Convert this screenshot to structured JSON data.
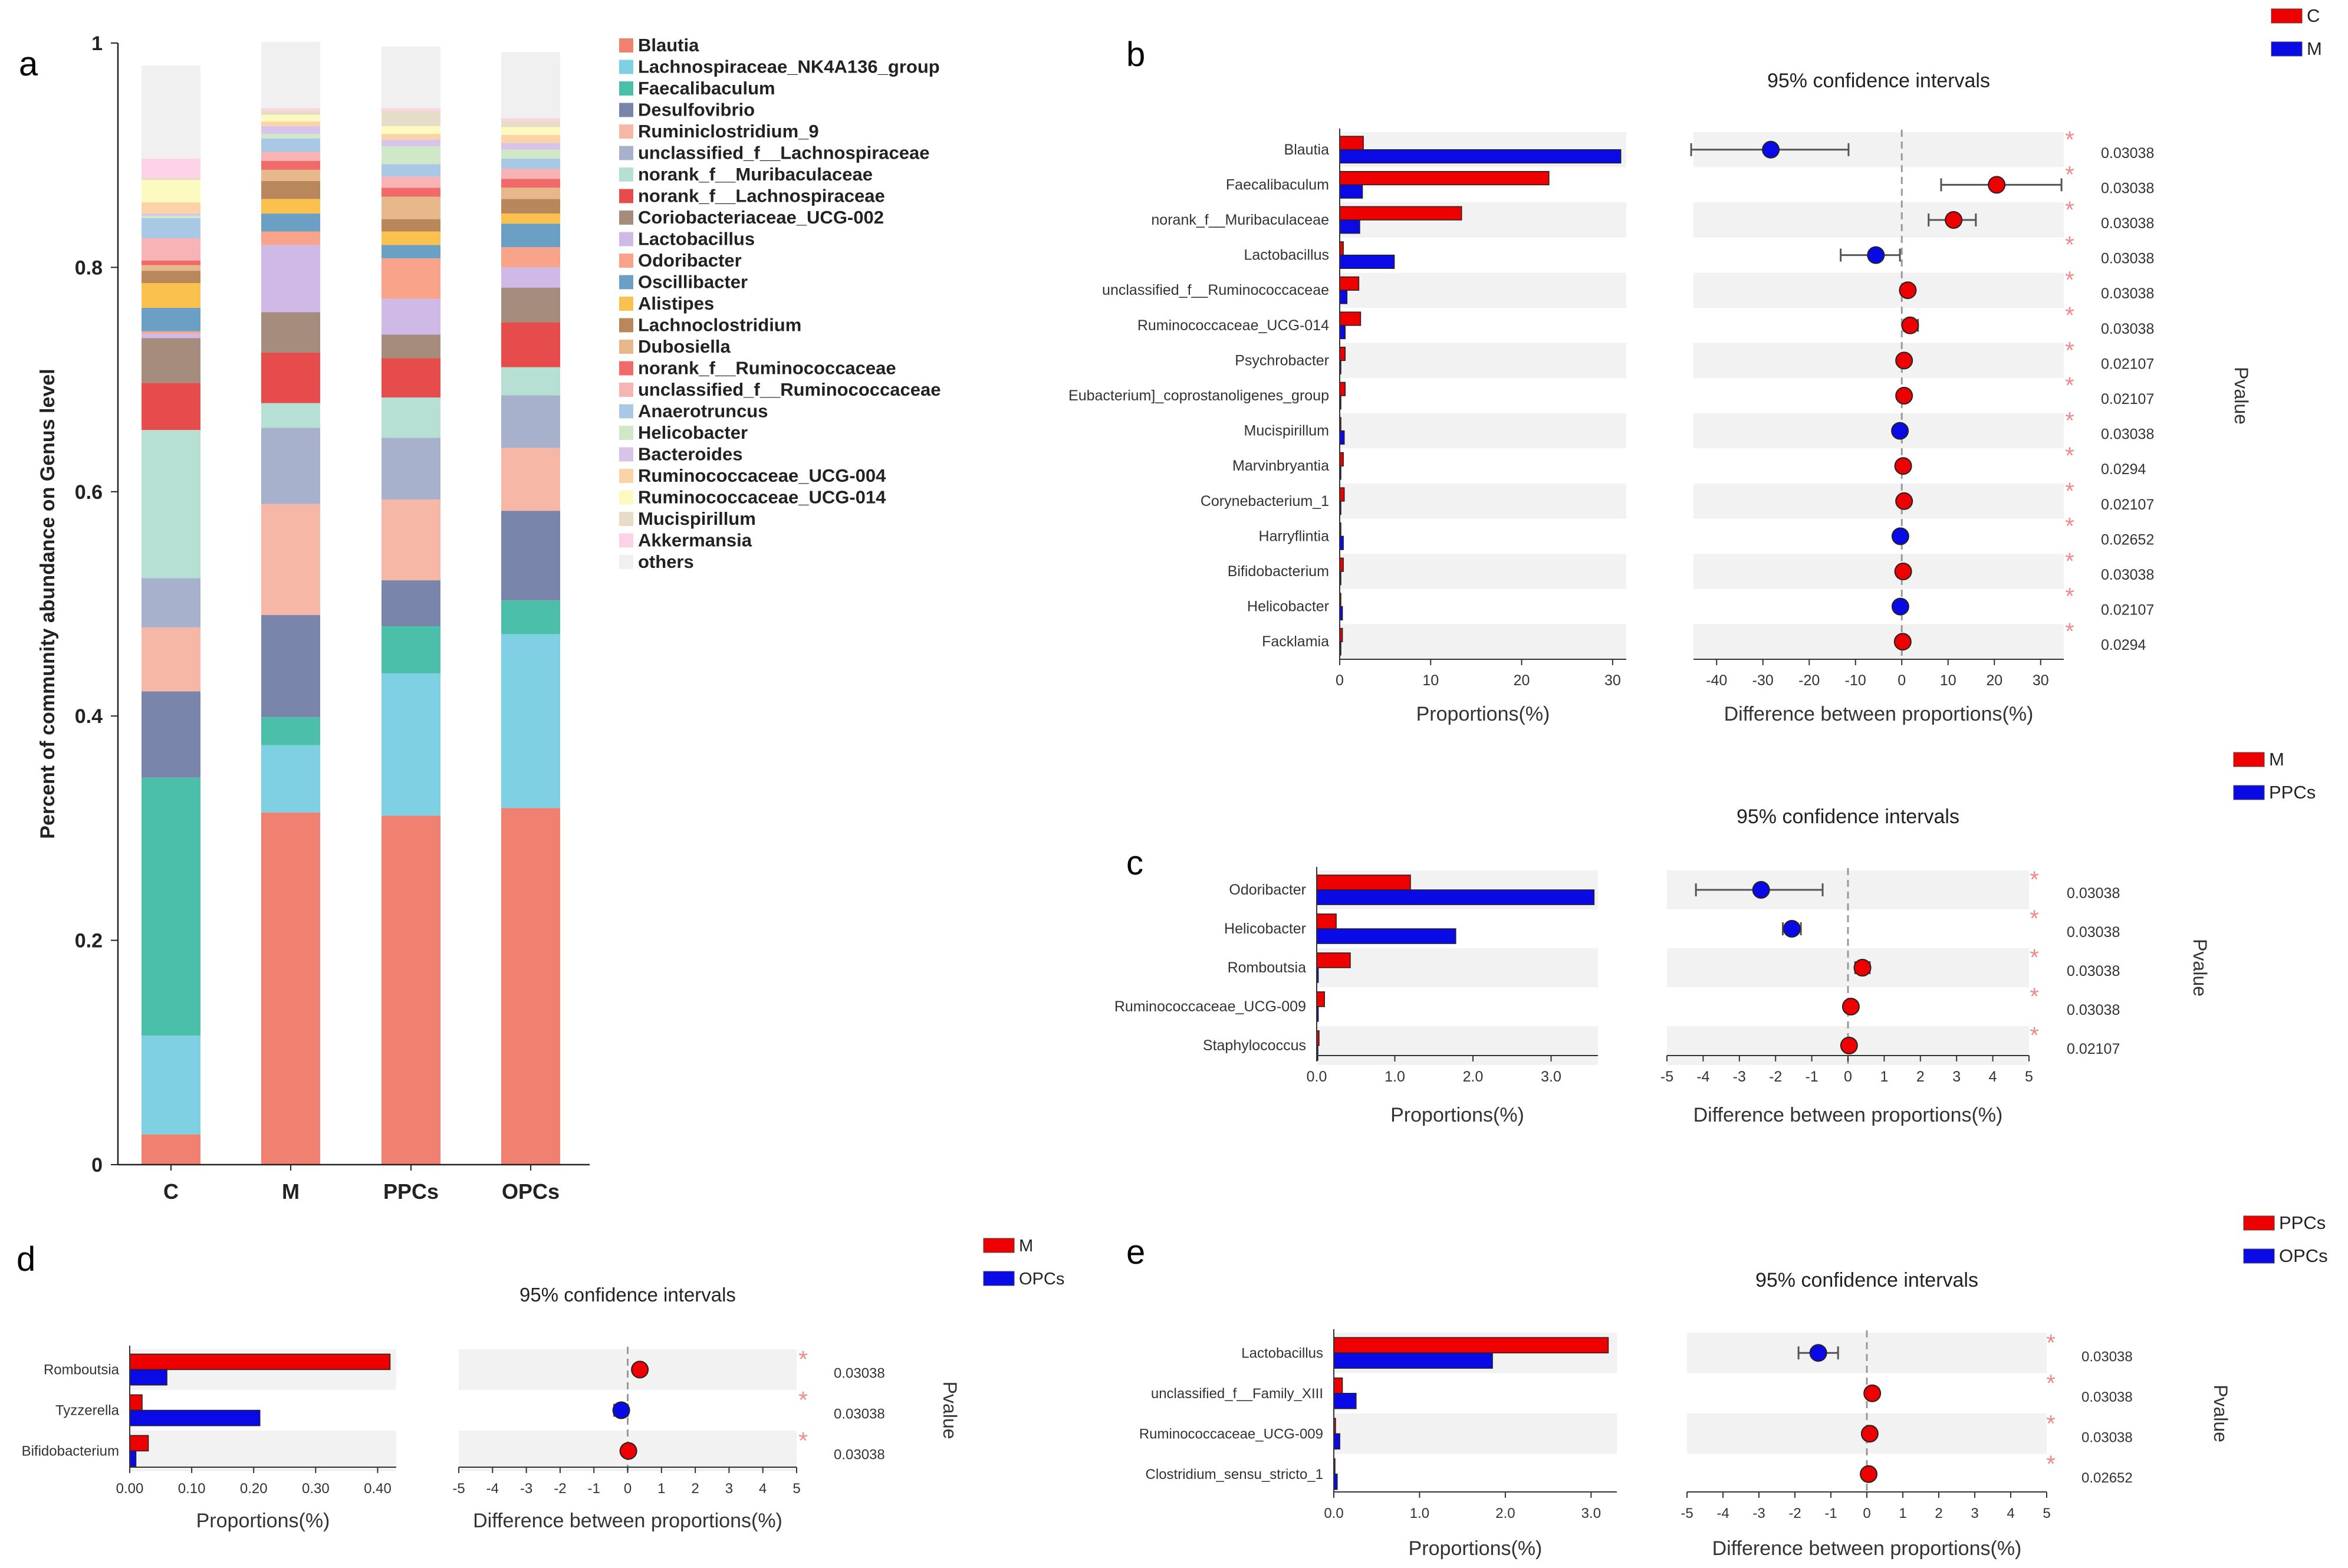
{
  "colors": {
    "red": "#ee0000",
    "blue": "#0a0ae6",
    "stripe": "#f2f2f2",
    "axis": "#333333",
    "star": "#f08a8a",
    "ci_line": "#555555",
    "dash": "#999999"
  },
  "chart_data": [
    {
      "id": "a",
      "type": "bar",
      "stacked": true,
      "panel_label": "a",
      "ylabel": "Percent of community abundance on Genus level",
      "ylim": [
        0,
        1
      ],
      "yticks": [
        "0",
        "0.2",
        "0.4",
        "0.6",
        "0.8",
        "1"
      ],
      "categories": [
        "C",
        "M",
        "PPCs",
        "OPCs"
      ],
      "series": [
        {
          "name": "Blautia",
          "color": "#f08070",
          "values": [
            0.027,
            0.314,
            0.311,
            0.318
          ]
        },
        {
          "name": "Lachnospiraceae_NK4A136_group",
          "color": "#7fd0e3",
          "values": [
            0.088,
            0.06,
            0.127,
            0.155
          ]
        },
        {
          "name": "Faecalibaculum",
          "color": "#4cbfab",
          "values": [
            0.23,
            0.025,
            0.042,
            0.03
          ]
        },
        {
          "name": "Desulfovibrio",
          "color": "#7a85ab",
          "values": [
            0.077,
            0.091,
            0.041,
            0.08
          ]
        },
        {
          "name": "Ruminiclostridium_9",
          "color": "#f6b7a6",
          "values": [
            0.057,
            0.099,
            0.072,
            0.056
          ]
        },
        {
          "name": "unclassified_f__Lachnospiraceae",
          "color": "#a7b1cc",
          "values": [
            0.044,
            0.068,
            0.055,
            0.047
          ]
        },
        {
          "name": "norank_f__Muribaculaceae",
          "color": "#b5e0d3",
          "values": [
            0.132,
            0.022,
            0.036,
            0.025
          ]
        },
        {
          "name": "norank_f__Lachnospiraceae",
          "color": "#e74c4c",
          "values": [
            0.042,
            0.045,
            0.035,
            0.04
          ]
        },
        {
          "name": "Coriobacteriaceae_UCG-002",
          "color": "#a58c7c",
          "values": [
            0.04,
            0.036,
            0.021,
            0.031
          ]
        },
        {
          "name": "Lactobacillus",
          "color": "#cfb9e6",
          "values": [
            0.004,
            0.06,
            0.032,
            0.018
          ]
        },
        {
          "name": "Odoribacter",
          "color": "#f8a38a",
          "values": [
            0.002,
            0.012,
            0.036,
            0.018
          ]
        },
        {
          "name": "Oscillibacter",
          "color": "#6c9fc4",
          "values": [
            0.021,
            0.016,
            0.012,
            0.021
          ]
        },
        {
          "name": "Alistipes",
          "color": "#fbc14f",
          "values": [
            0.022,
            0.013,
            0.012,
            0.009
          ]
        },
        {
          "name": "Lachnoclostridium",
          "color": "#b9875c",
          "values": [
            0.011,
            0.016,
            0.011,
            0.013
          ]
        },
        {
          "name": "Dubosiella",
          "color": "#e6b88a",
          "values": [
            0.005,
            0.01,
            0.02,
            0.01
          ]
        },
        {
          "name": "norank_f__Ruminococcaceae",
          "color": "#f06a6a",
          "values": [
            0.004,
            0.008,
            0.008,
            0.008
          ]
        },
        {
          "name": "unclassified_f__Ruminococcaceae",
          "color": "#f8b4b4",
          "values": [
            0.02,
            0.008,
            0.01,
            0.009
          ]
        },
        {
          "name": "Anaerotruncus",
          "color": "#a9c8e6",
          "values": [
            0.018,
            0.012,
            0.011,
            0.009
          ]
        },
        {
          "name": "Helicobacter",
          "color": "#cfe8c8",
          "values": [
            0.002,
            0.004,
            0.016,
            0.008
          ]
        },
        {
          "name": "Bacteroides",
          "color": "#d8c4e8",
          "values": [
            0.002,
            0.007,
            0.006,
            0.006
          ]
        },
        {
          "name": "Ruminococcaceae_UCG-004",
          "color": "#fcd3a6",
          "values": [
            0.01,
            0.004,
            0.005,
            0.007
          ]
        },
        {
          "name": "Ruminococcaceae_UCG-014",
          "color": "#fdfac0",
          "values": [
            0.02,
            0.006,
            0.007,
            0.007
          ]
        },
        {
          "name": "Mucispirillum",
          "color": "#e6dcc8",
          "values": [
            0.002,
            0.004,
            0.014,
            0.006
          ]
        },
        {
          "name": "Akkermansia",
          "color": "#fbd2e6",
          "values": [
            0.017,
            0.002,
            0.002,
            0.002
          ]
        },
        {
          "name": "others",
          "color": "#f0f0f0",
          "values": [
            0.083,
            0.059,
            0.055,
            0.059
          ]
        }
      ]
    },
    {
      "id": "b",
      "type": "bar+errorbar",
      "panel_label": "b",
      "ci_title": "95% confidence intervals",
      "xlabel_left": "Proportions(%)",
      "xlabel_right": "Difference between proportions(%)",
      "pvalue_label": "Pvalue",
      "group_a": "C",
      "group_b": "M",
      "left_xlim": [
        0,
        31.5
      ],
      "left_ticks": [
        "0",
        "10",
        "20",
        "30"
      ],
      "left_tick_values": [
        0,
        10,
        20,
        30
      ],
      "right_xlim": [
        -45,
        35
      ],
      "right_ticks": [
        "-40",
        "-30",
        "-20",
        "-10",
        "0",
        "10",
        "20",
        "30"
      ],
      "right_tick_values": [
        -40,
        -30,
        -20,
        -10,
        0,
        10,
        20,
        30
      ],
      "rows": [
        {
          "taxon": "Blautia",
          "a": 2.6,
          "b": 30.9,
          "diff": -28.3,
          "low": -45.5,
          "high": -11.5,
          "p": "0.03038"
        },
        {
          "taxon": "Faecalibaculum",
          "a": 23.0,
          "b": 2.5,
          "diff": 20.5,
          "low": 8.5,
          "high": 34.5,
          "p": "0.03038"
        },
        {
          "taxon": "norank_f__Muribaculaceae",
          "a": 13.4,
          "b": 2.2,
          "diff": 11.2,
          "low": 5.8,
          "high": 16.0,
          "p": "0.03038"
        },
        {
          "taxon": "Lactobacillus",
          "a": 0.4,
          "b": 6.0,
          "diff": -5.6,
          "low": -13.2,
          "high": -0.4,
          "p": "0.03038"
        },
        {
          "taxon": "unclassified_f__Ruminococcaceae",
          "a": 2.1,
          "b": 0.8,
          "diff": 1.3,
          "low": 0.3,
          "high": 2.4,
          "p": "0.03038"
        },
        {
          "taxon": "Ruminococcaceae_UCG-014",
          "a": 2.3,
          "b": 0.6,
          "diff": 1.8,
          "low": 0.5,
          "high": 3.5,
          "p": "0.03038"
        },
        {
          "taxon": "Psychrobacter",
          "a": 0.6,
          "b": 0.0,
          "diff": 0.5,
          "low": 0.2,
          "high": 0.9,
          "p": "0.02107"
        },
        {
          "taxon": "Eubacterium]_coprostanoligenes_group",
          "a": 0.6,
          "b": 0.1,
          "diff": 0.5,
          "low": 0.1,
          "high": 0.9,
          "p": "0.02107"
        },
        {
          "taxon": "Mucispirillum",
          "a": 0.1,
          "b": 0.5,
          "diff": -0.4,
          "low": -0.8,
          "high": -0.1,
          "p": "0.03038"
        },
        {
          "taxon": "Marvinbryantia",
          "a": 0.4,
          "b": 0.1,
          "diff": 0.3,
          "low": 0.1,
          "high": 0.6,
          "p": "0.0294"
        },
        {
          "taxon": "Corynebacterium_1",
          "a": 0.5,
          "b": 0.0,
          "diff": 0.5,
          "low": 0.1,
          "high": 0.9,
          "p": "0.02107"
        },
        {
          "taxon": "Harryflintia",
          "a": 0.1,
          "b": 0.4,
          "diff": -0.3,
          "low": -0.6,
          "high": -0.1,
          "p": "0.02652"
        },
        {
          "taxon": "Bifidobacterium",
          "a": 0.4,
          "b": 0.1,
          "diff": 0.3,
          "low": 0.1,
          "high": 0.6,
          "p": "0.03038"
        },
        {
          "taxon": "Helicobacter",
          "a": 0.0,
          "b": 0.3,
          "diff": -0.3,
          "low": -0.6,
          "high": -0.1,
          "p": "0.02107"
        },
        {
          "taxon": "Facklamia",
          "a": 0.3,
          "b": 0.0,
          "diff": 0.2,
          "low": 0.05,
          "high": 0.5,
          "p": "0.0294"
        }
      ]
    },
    {
      "id": "c",
      "type": "bar+errorbar",
      "panel_label": "c",
      "ci_title": "95% confidence intervals",
      "xlabel_left": "Proportions(%)",
      "xlabel_right": "Difference between proportions(%)",
      "pvalue_label": "Pvalue",
      "group_a": "M",
      "group_b": "PPCs",
      "left_xlim": [
        0,
        3.6
      ],
      "left_ticks": [
        "0.0",
        "1.0",
        "2.0",
        "3.0"
      ],
      "left_tick_values": [
        0,
        1,
        2,
        3
      ],
      "right_xlim": [
        -5,
        5
      ],
      "right_ticks": [
        "-5",
        "-4",
        "-3",
        "-2",
        "-1",
        "0",
        "1",
        "2",
        "3",
        "4",
        "5"
      ],
      "right_tick_values": [
        -5,
        -4,
        -3,
        -2,
        -1,
        0,
        1,
        2,
        3,
        4,
        5
      ],
      "rows": [
        {
          "taxon": "Odoribacter",
          "a": 1.2,
          "b": 3.55,
          "diff": -2.4,
          "low": -4.2,
          "high": -0.7,
          "p": "0.03038"
        },
        {
          "taxon": "Helicobacter",
          "a": 0.25,
          "b": 1.78,
          "diff": -1.55,
          "low": -1.8,
          "high": -1.3,
          "p": "0.03038"
        },
        {
          "taxon": "Romboutsia",
          "a": 0.43,
          "b": 0.02,
          "diff": 0.4,
          "low": 0.2,
          "high": 0.6,
          "p": "0.03038"
        },
        {
          "taxon": "Ruminococcaceae_UCG-009",
          "a": 0.1,
          "b": 0.02,
          "diff": 0.08,
          "low": 0.0,
          "high": 0.15,
          "p": "0.03038"
        },
        {
          "taxon": "Staphylococcus",
          "a": 0.03,
          "b": 0.0,
          "diff": 0.03,
          "low": 0.0,
          "high": 0.06,
          "p": "0.02107"
        }
      ]
    },
    {
      "id": "d",
      "type": "bar+errorbar",
      "panel_label": "d",
      "ci_title": "95% confidence intervals",
      "xlabel_left": "Proportions(%)",
      "xlabel_right": "Difference between proportions(%)",
      "pvalue_label": "Pvalue",
      "group_a": "M",
      "group_b": "OPCs",
      "left_xlim": [
        0,
        0.43
      ],
      "left_ticks": [
        "0.00",
        "0.10",
        "0.20",
        "0.30",
        "0.40"
      ],
      "left_tick_values": [
        0,
        0.1,
        0.2,
        0.3,
        0.4
      ],
      "right_xlim": [
        -5,
        5
      ],
      "right_ticks": [
        "-5",
        "-4",
        "-3",
        "-2",
        "-1",
        "0",
        "1",
        "2",
        "3",
        "4",
        "5"
      ],
      "right_tick_values": [
        -5,
        -4,
        -3,
        -2,
        -1,
        0,
        1,
        2,
        3,
        4,
        5
      ],
      "rows": [
        {
          "taxon": "Romboutsia",
          "a": 0.42,
          "b": 0.06,
          "diff": 0.36,
          "low": 0.2,
          "high": 0.5,
          "p": "0.03038"
        },
        {
          "taxon": "Tyzzerella",
          "a": 0.02,
          "b": 0.21,
          "diff": -0.19,
          "low": -0.4,
          "high": 0.0,
          "p": "0.03038"
        },
        {
          "taxon": "Bifidobacterium",
          "a": 0.03,
          "b": 0.01,
          "diff": 0.02,
          "low": -0.1,
          "high": 0.12,
          "p": "0.03038"
        }
      ]
    },
    {
      "id": "e",
      "type": "bar+errorbar",
      "panel_label": "e",
      "ci_title": "95% confidence intervals",
      "xlabel_left": "Proportions(%)",
      "xlabel_right": "Difference between proportions(%)",
      "pvalue_label": "Pvalue",
      "group_a": "PPCs",
      "group_b": "OPCs",
      "left_xlim": [
        0,
        3.3
      ],
      "left_ticks": [
        "0.0",
        "1.0",
        "2.0",
        "3.0"
      ],
      "left_tick_values": [
        0,
        1,
        2,
        3
      ],
      "right_xlim": [
        -5,
        5
      ],
      "right_ticks": [
        "-5",
        "-4",
        "-3",
        "-2",
        "-1",
        "0",
        "1",
        "2",
        "3",
        "4",
        "5"
      ],
      "right_tick_values": [
        -5,
        -4,
        -3,
        -2,
        -1,
        0,
        1,
        2,
        3,
        4,
        5
      ],
      "rows": [
        {
          "taxon": "Lactobacillus",
          "a": 3.2,
          "b": 1.85,
          "diff": -1.35,
          "low": -1.9,
          "high": -0.8,
          "p": "0.03038"
        },
        {
          "taxon": "unclassified_f__Family_XIII",
          "a": 0.1,
          "b": 0.26,
          "diff": 0.15,
          "low": 0.05,
          "high": 0.25,
          "p": "0.03038"
        },
        {
          "taxon": "Ruminococcaceae_UCG-009",
          "a": 0.02,
          "b": 0.07,
          "diff": 0.08,
          "low": 0.02,
          "high": 0.12,
          "p": "0.03038"
        },
        {
          "taxon": "Clostridium_sensu_stricto_1",
          "a": 0.0,
          "b": 0.04,
          "diff": 0.05,
          "low": 0.0,
          "high": 0.1,
          "p": "0.02652"
        }
      ]
    }
  ]
}
